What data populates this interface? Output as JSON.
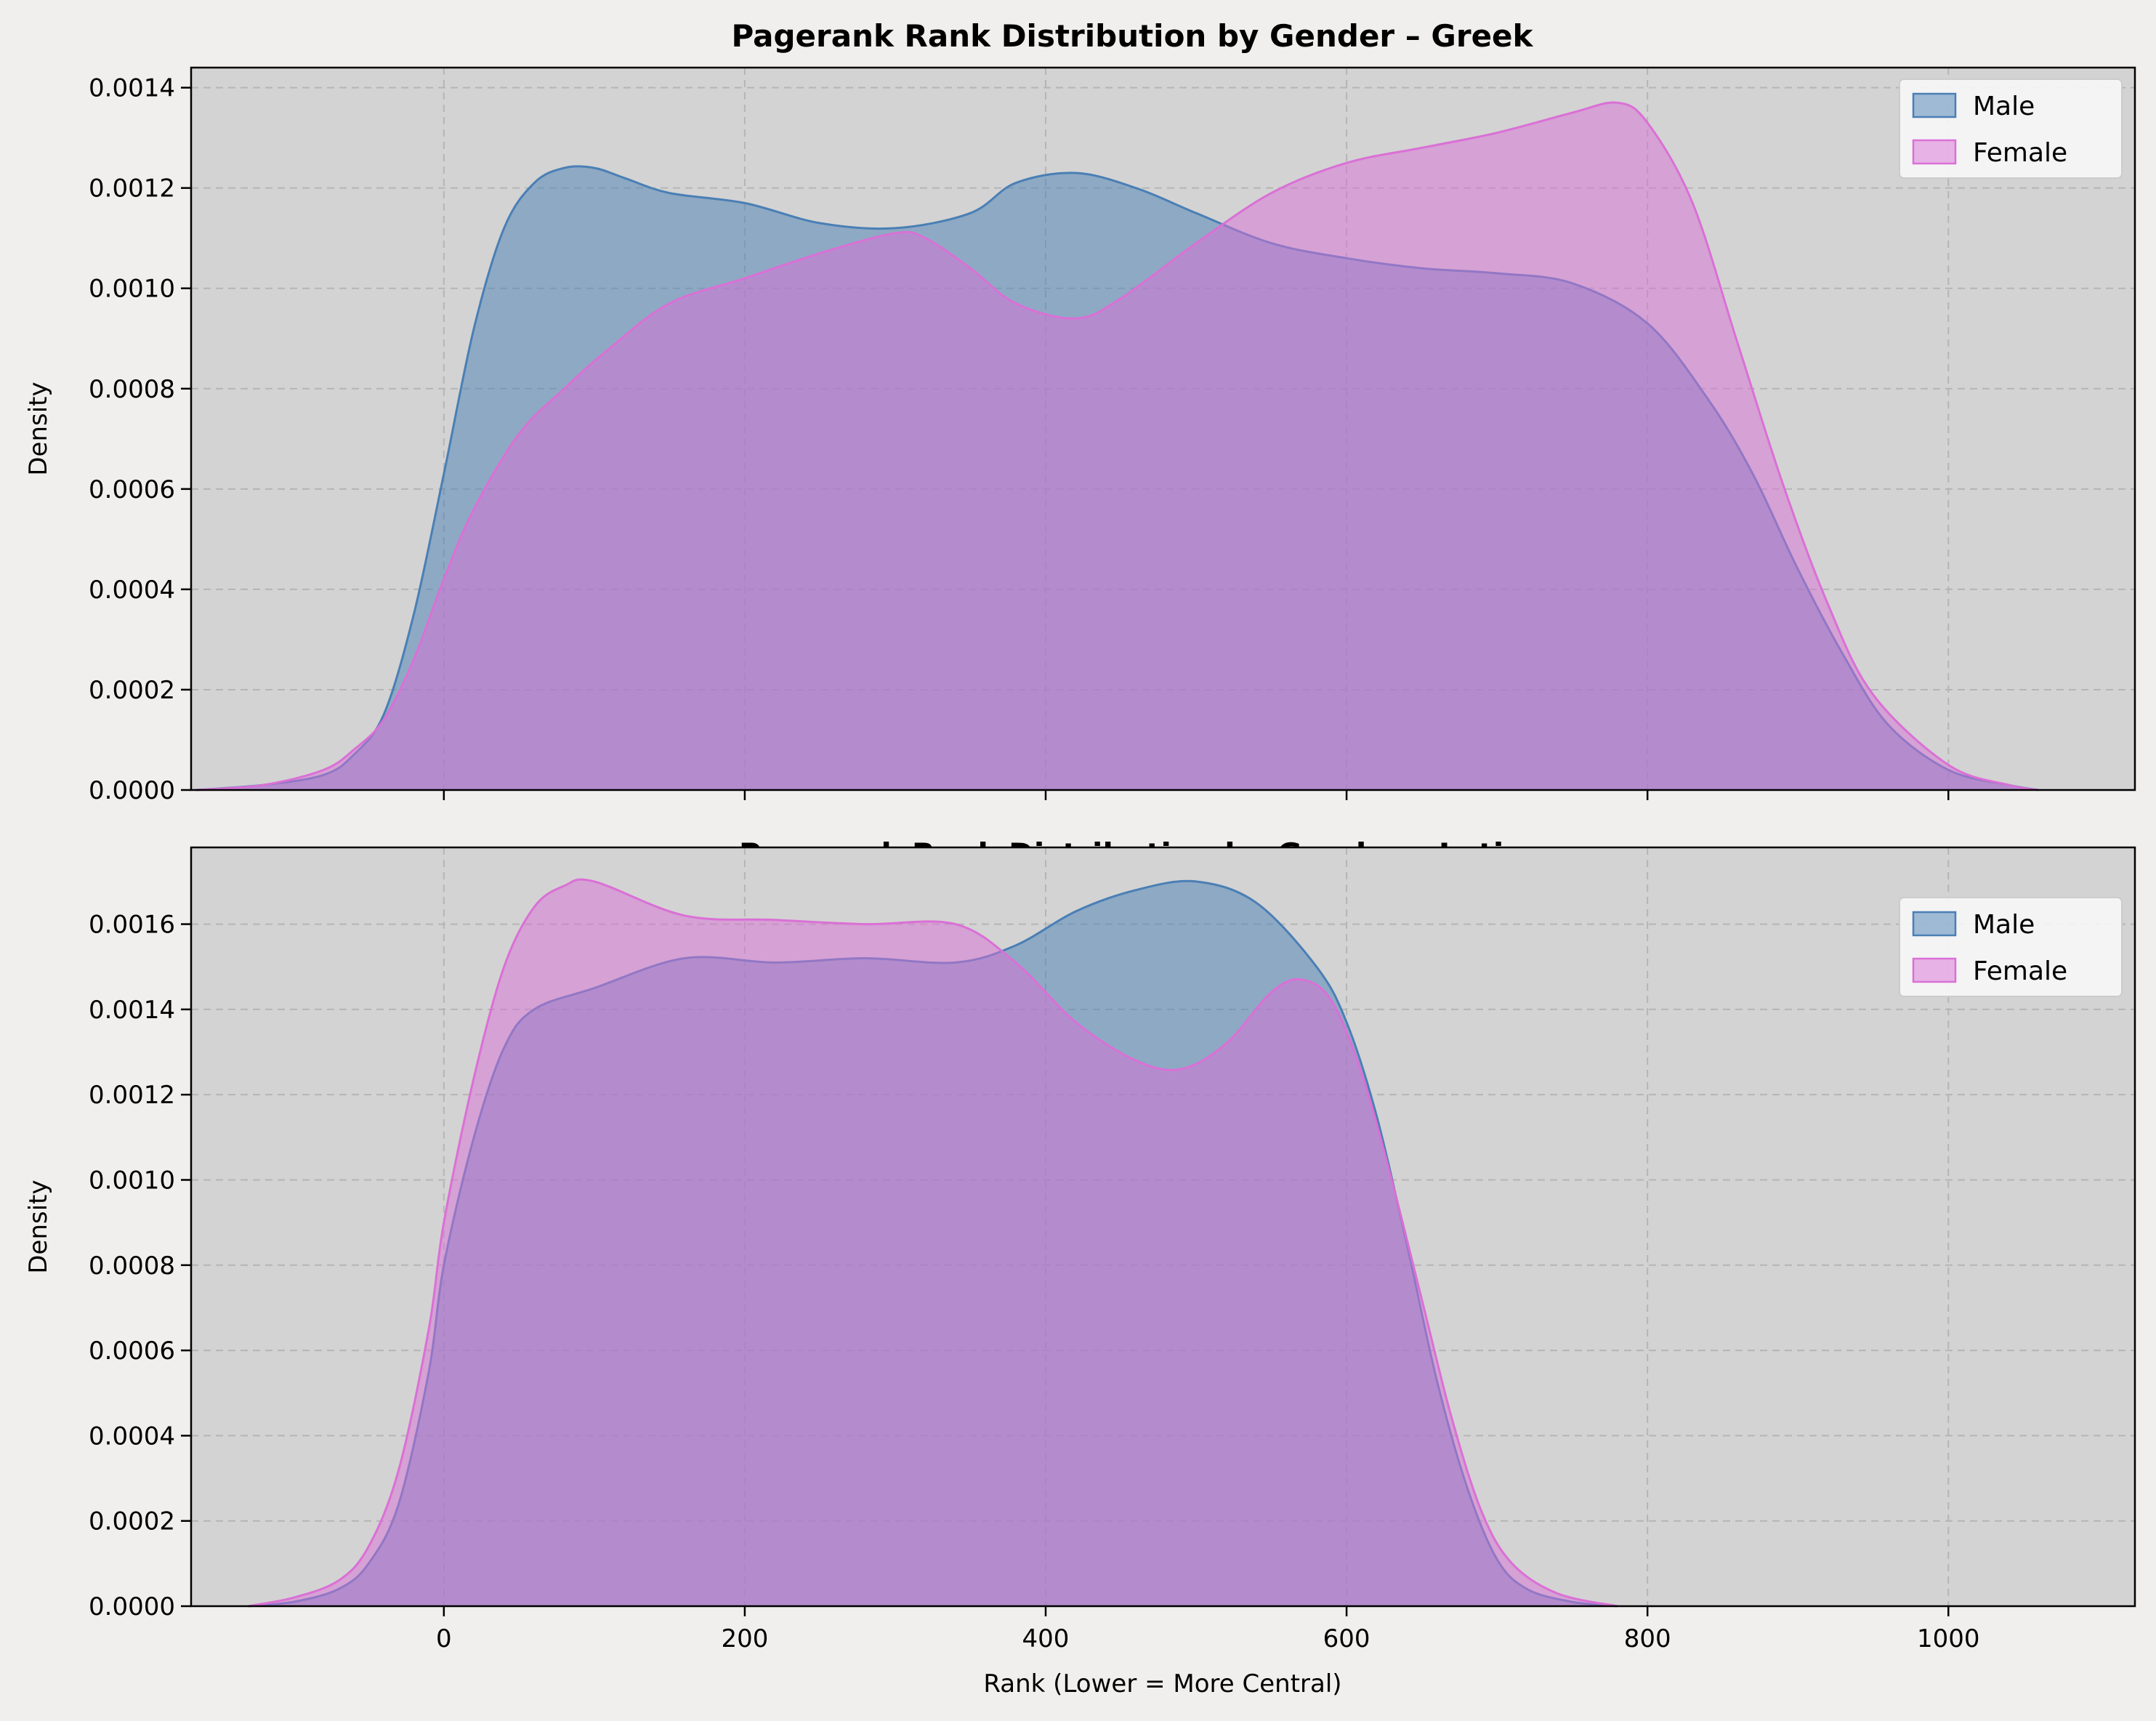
{
  "colors": {
    "figure_bg": "#f0efed",
    "axes_bg": "#d3d3d3",
    "male": "#4a7fb5",
    "female": "#da70d6",
    "grid": "#b5b5b5"
  },
  "chart_data": [
    {
      "type": "area",
      "title": "Pagerank Rank Distribution by Gender – Greek",
      "xlabel": "",
      "ylabel": "Density",
      "xlim": [
        -168,
        1124
      ],
      "ylim": [
        0,
        0.00144
      ],
      "xticks": [
        0,
        200,
        400,
        600,
        800,
        1000
      ],
      "xtick_labels_visible": false,
      "yticks": [
        0,
        0.0002,
        0.0004,
        0.0006,
        0.0008,
        0.001,
        0.0012,
        0.0014
      ],
      "ytick_labels": [
        "0.0000",
        "0.0002",
        "0.0004",
        "0.0006",
        "0.0008",
        "0.0010",
        "0.0012",
        "0.0014"
      ],
      "grid": true,
      "legend": {
        "position": "top-right",
        "entries": [
          "Male",
          "Female"
        ]
      },
      "series": [
        {
          "name": "Male",
          "x": [
            -165,
            -120,
            -80,
            -60,
            -40,
            -20,
            0,
            20,
            40,
            60,
            80,
            100,
            120,
            150,
            200,
            250,
            300,
            350,
            380,
            420,
            460,
            500,
            550,
            600,
            650,
            700,
            750,
            800,
            840,
            870,
            900,
            930,
            960,
            1000,
            1040,
            1060
          ],
          "y": [
            0,
            1e-05,
            3e-05,
            7e-05,
            0.00015,
            0.00035,
            0.00063,
            0.00092,
            0.00112,
            0.00121,
            0.00124,
            0.00124,
            0.00122,
            0.00119,
            0.00117,
            0.00113,
            0.00112,
            0.00115,
            0.00121,
            0.00123,
            0.0012,
            0.00115,
            0.00109,
            0.00106,
            0.00104,
            0.00103,
            0.00101,
            0.00093,
            0.00078,
            0.00063,
            0.00044,
            0.00027,
            0.00013,
            4e-05,
            1e-05,
            0
          ]
        },
        {
          "name": "Female",
          "x": [
            -165,
            -120,
            -80,
            -60,
            -40,
            -20,
            0,
            20,
            50,
            80,
            110,
            150,
            200,
            250,
            300,
            320,
            350,
            380,
            420,
            450,
            500,
            550,
            600,
            650,
            700,
            750,
            780,
            800,
            830,
            860,
            890,
            920,
            950,
            1000,
            1040,
            1060
          ],
          "y": [
            0,
            1e-05,
            4e-05,
            8e-05,
            0.00014,
            0.00026,
            0.00042,
            0.00056,
            0.00071,
            0.0008,
            0.00088,
            0.00097,
            0.00102,
            0.00107,
            0.00111,
            0.0011,
            0.00104,
            0.00097,
            0.00094,
            0.00098,
            0.00109,
            0.00119,
            0.00125,
            0.00128,
            0.00131,
            0.00135,
            0.00137,
            0.00133,
            0.00117,
            0.00089,
            0.00061,
            0.00037,
            0.00019,
            5e-05,
            1e-05,
            0
          ]
        }
      ]
    },
    {
      "type": "area",
      "title": "Pagerank Rank Distribution by Gender – Latin",
      "xlabel": "Rank (Lower = More Central)",
      "ylabel": "Density",
      "xlim": [
        -168,
        1124
      ],
      "ylim": [
        0,
        0.00178
      ],
      "xticks": [
        0,
        200,
        400,
        600,
        800,
        1000
      ],
      "xtick_labels_visible": true,
      "xtick_labels": [
        "0",
        "200",
        "400",
        "600",
        "800",
        "1000"
      ],
      "yticks": [
        0,
        0.0002,
        0.0004,
        0.0006,
        0.0008,
        0.001,
        0.0012,
        0.0014,
        0.0016
      ],
      "ytick_labels": [
        "0.0000",
        "0.0002",
        "0.0004",
        "0.0006",
        "0.0008",
        "0.0010",
        "0.0012",
        "0.0014",
        "0.0016"
      ],
      "grid": true,
      "legend": {
        "position": "top-right",
        "entries": [
          "Male",
          "Female"
        ]
      },
      "series": [
        {
          "name": "Male",
          "x": [
            -130,
            -100,
            -70,
            -50,
            -30,
            -10,
            0,
            20,
            40,
            60,
            100,
            160,
            220,
            280,
            340,
            380,
            420,
            460,
            500,
            540,
            580,
            600,
            620,
            640,
            660,
            680,
            700,
            720,
            750,
            780
          ],
          "y": [
            0,
            1e-05,
            4e-05,
            0.0001,
            0.00024,
            0.00055,
            0.0008,
            0.0011,
            0.00131,
            0.0014,
            0.00145,
            0.00152,
            0.00151,
            0.00152,
            0.00151,
            0.00155,
            0.00163,
            0.00168,
            0.0017,
            0.00165,
            0.0015,
            0.00137,
            0.00115,
            0.00085,
            0.00053,
            0.00028,
            0.00011,
            4e-05,
            1e-05,
            0
          ]
        },
        {
          "name": "Female",
          "x": [
            -130,
            -100,
            -70,
            -50,
            -30,
            -10,
            0,
            20,
            40,
            60,
            80,
            100,
            160,
            220,
            280,
            340,
            380,
            420,
            460,
            490,
            520,
            550,
            570,
            590,
            610,
            630,
            650,
            670,
            690,
            710,
            740,
            780
          ],
          "y": [
            0,
            2e-05,
            6e-05,
            0.00014,
            0.00032,
            0.00065,
            0.0009,
            0.00124,
            0.0015,
            0.00164,
            0.00169,
            0.0017,
            0.00162,
            0.00161,
            0.0016,
            0.0016,
            0.00151,
            0.00137,
            0.00128,
            0.00126,
            0.00132,
            0.00144,
            0.00147,
            0.00142,
            0.00125,
            0.001,
            0.00072,
            0.00044,
            0.00022,
            0.0001,
            3e-05,
            0
          ]
        }
      ]
    }
  ]
}
